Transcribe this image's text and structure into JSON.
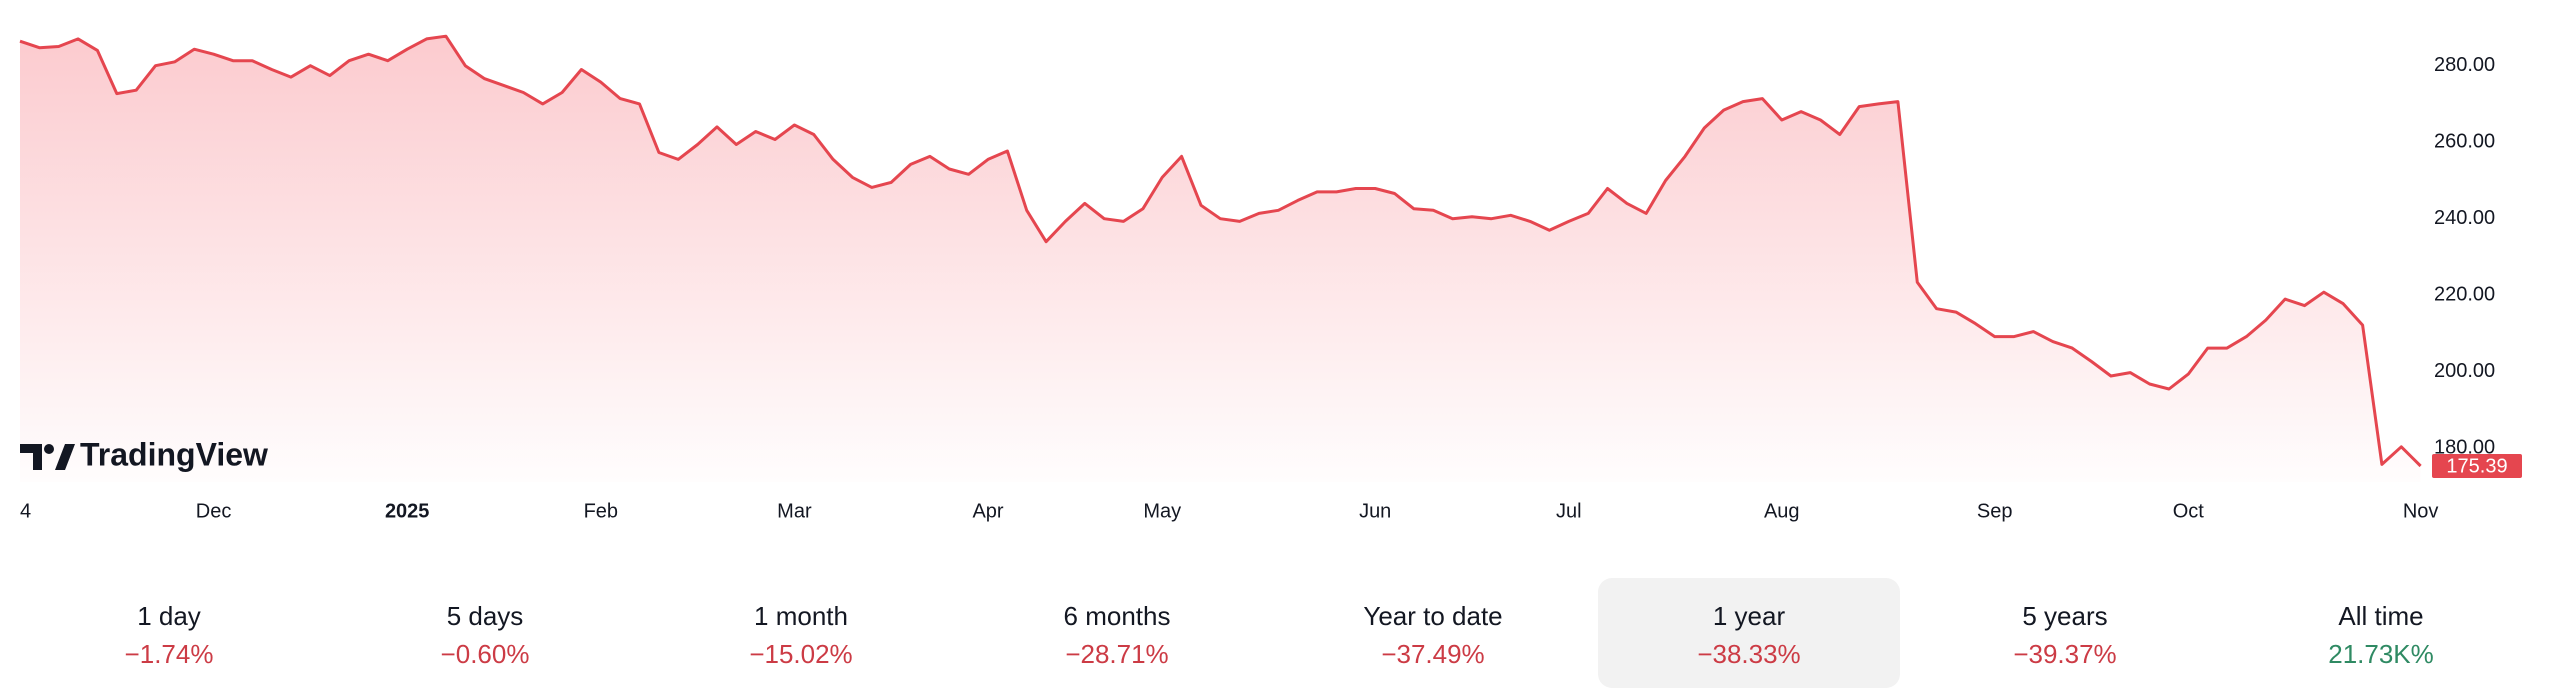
{
  "brand": "TradingView",
  "chart_data": {
    "type": "area",
    "categories": [
      "4",
      null,
      null,
      null,
      null,
      null,
      null,
      null,
      null,
      null,
      "Dec",
      null,
      null,
      null,
      null,
      null,
      null,
      null,
      null,
      null,
      "2025",
      null,
      null,
      null,
      null,
      null,
      null,
      null,
      null,
      null,
      "Feb",
      null,
      null,
      null,
      null,
      null,
      null,
      null,
      null,
      null,
      "Mar",
      null,
      null,
      null,
      null,
      null,
      null,
      null,
      null,
      null,
      "Apr",
      null,
      null,
      null,
      null,
      null,
      null,
      null,
      null,
      "May",
      null,
      null,
      null,
      null,
      null,
      null,
      null,
      null,
      null,
      null,
      "Jun",
      null,
      null,
      null,
      null,
      null,
      null,
      null,
      null,
      null,
      "Jul",
      null,
      null,
      null,
      null,
      null,
      null,
      null,
      null,
      null,
      null,
      "Aug",
      null,
      null,
      null,
      null,
      null,
      null,
      null,
      null,
      null,
      null,
      "Sep",
      null,
      null,
      null,
      null,
      null,
      null,
      null,
      null,
      null,
      "Oct",
      null,
      null,
      null,
      null,
      null,
      null,
      null,
      null,
      null,
      null,
      null,
      "Nov"
    ],
    "values": [
      286.4,
      284.7,
      285,
      287,
      284,
      272.7,
      273.6,
      280,
      281,
      284.3,
      283,
      281.3,
      281.3,
      279,
      277,
      280,
      277.4,
      281.3,
      283,
      281.3,
      284.3,
      287,
      287.7,
      280,
      276.6,
      274.8,
      273,
      270,
      273,
      279,
      275.7,
      271.4,
      270,
      257.3,
      255.5,
      259.4,
      264,
      259.4,
      262.8,
      260.7,
      264.5,
      262,
      255.5,
      250.8,
      248.2,
      249.5,
      254.2,
      256.3,
      253,
      251.6,
      255.5,
      257.7,
      242.2,
      234,
      239.3,
      244,
      240,
      239.3,
      242.6,
      250.8,
      256.3,
      243.5,
      240,
      239.3,
      241.4,
      242.2,
      244.8,
      247,
      247,
      247.9,
      247.9,
      246.6,
      242.6,
      242.2,
      240,
      240.5,
      240,
      240.9,
      239.3,
      237,
      239.3,
      241.4,
      247.9,
      244,
      241.4,
      250,
      256.3,
      263.7,
      268.4,
      270.6,
      271.4,
      265.8,
      268,
      265.8,
      262,
      269.3,
      270,
      270.6,
      223.4,
      216.5,
      215.6,
      212.6,
      209.2,
      209.2,
      210.5,
      207.9,
      206.2,
      202.7,
      198.9,
      199.8,
      196.8,
      195.5,
      199.4,
      206.2,
      206.2,
      209.2,
      213.5,
      219,
      217.3,
      220.8,
      217.8,
      212.2,
      175.8,
      180.4,
      175.39
    ],
    "color": "#e5464f",
    "last_value": 175.39,
    "ylim": [
      170,
      290
    ],
    "yticks": [
      {
        "value": 180,
        "label": "180.00"
      },
      {
        "value": 200,
        "label": "200.00"
      },
      {
        "value": 220,
        "label": "220.00"
      },
      {
        "value": 240,
        "label": "240.00"
      },
      {
        "value": 260,
        "label": "260.00"
      },
      {
        "value": 280,
        "label": "280.00"
      }
    ],
    "grid": false
  },
  "periods": [
    {
      "label": "1 day",
      "change": "−1.74%",
      "color": "#cc3b45"
    },
    {
      "label": "5 days",
      "change": "−0.60%",
      "color": "#cc3b45"
    },
    {
      "label": "1 month",
      "change": "−15.02%",
      "color": "#cc3b45"
    },
    {
      "label": "6 months",
      "change": "−28.71%",
      "color": "#cc3b45"
    },
    {
      "label": "Year to date",
      "change": "−37.49%",
      "color": "#cc3b45"
    },
    {
      "label": "1 year",
      "change": "−38.33%",
      "color": "#cc3b45"
    },
    {
      "label": "5 years",
      "change": "−39.37%",
      "color": "#cc3b45"
    },
    {
      "label": "All time",
      "change": "21.73K%",
      "color": "#2f8a63"
    }
  ],
  "selected_period": 5
}
